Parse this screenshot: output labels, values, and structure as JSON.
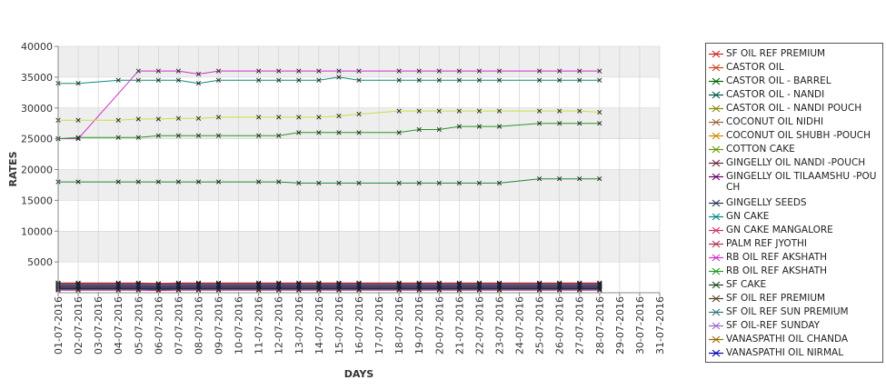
{
  "chart_data": {
    "type": "line",
    "xlabel": "DAYS",
    "ylabel": "RATES",
    "ylim": [
      0,
      40000
    ],
    "yticks": [
      "40000",
      "35000",
      "30000",
      "25000",
      "20000",
      "15000",
      "10000",
      "5000"
    ],
    "ytick_values": [
      40000,
      35000,
      30000,
      25000,
      20000,
      15000,
      10000,
      5000
    ],
    "x": [
      "01-07-2016",
      "02-07-2016",
      "03-07-2016",
      "04-07-2016",
      "05-07-2016",
      "06-07-2016",
      "07-07-2016",
      "08-07-2016",
      "09-07-2016",
      "10-07-2016",
      "11-07-2016",
      "12-07-2016",
      "13-07-2016",
      "14-07-2016",
      "15-07-2016",
      "16-07-2016",
      "17-07-2016",
      "18-07-2016",
      "19-07-2016",
      "20-07-2016",
      "21-07-2016",
      "22-07-2016",
      "23-07-2016",
      "24-07-2016",
      "25-07-2016",
      "26-07-2016",
      "27-07-2016",
      "28-07-2016",
      "29-07-2016",
      "30-07-2016",
      "31-07-2016"
    ],
    "grid": true,
    "legend_position": "right",
    "series": [
      {
        "name": " SF OIL REF PREMIUM",
        "color": "#cc2222",
        "values": [
          1600,
          1600,
          null,
          1600,
          1600,
          1500,
          1600,
          1600,
          1600,
          null,
          1600,
          1600,
          1600,
          1600,
          1600,
          1600,
          null,
          1600,
          1600,
          1600,
          1600,
          1600,
          1600,
          null,
          1600,
          1600,
          1600,
          1600,
          null,
          null,
          null
        ]
      },
      {
        "name": "CASTOR OIL",
        "color": "#cc4422",
        "values": [
          1450,
          1450,
          null,
          1450,
          1450,
          1400,
          1450,
          1450,
          1450,
          null,
          1450,
          1450,
          1450,
          1450,
          1450,
          1450,
          null,
          1450,
          1450,
          1450,
          1450,
          1450,
          1450,
          null,
          1450,
          1450,
          1450,
          1450,
          null,
          null,
          null
        ]
      },
      {
        "name": "CASTOR OIL - BARREL",
        "color": "#006600",
        "values": [
          34000,
          34000,
          null,
          34500,
          34500,
          34500,
          34500,
          34000,
          34500,
          null,
          34500,
          34500,
          34500,
          34500,
          35000,
          34500,
          null,
          34500,
          34500,
          34500,
          34500,
          34500,
          34500,
          null,
          34500,
          34500,
          34500,
          34500,
          null,
          null,
          null
        ]
      },
      {
        "name": "CASTOR OIL - NANDI",
        "color": "#005544",
        "values": [
          1300,
          1300,
          null,
          1300,
          1300,
          1250,
          1300,
          1300,
          1300,
          null,
          1300,
          1300,
          1300,
          1300,
          1300,
          1300,
          null,
          1300,
          1300,
          1300,
          1300,
          1300,
          1300,
          null,
          1300,
          1300,
          1300,
          1300,
          null,
          null,
          null
        ]
      },
      {
        "name": "CASTOR OIL - NANDI POUCH",
        "color": "#888800",
        "values": [
          1200,
          1200,
          null,
          1200,
          1200,
          1150,
          1200,
          1200,
          1200,
          null,
          1200,
          1200,
          1200,
          1200,
          1200,
          1200,
          null,
          1200,
          1200,
          1200,
          1200,
          1200,
          1200,
          null,
          1200,
          1200,
          1200,
          1200,
          null,
          null,
          null
        ]
      },
      {
        "name": "COCONUT OIL NIDHI",
        "color": "#996633",
        "values": [
          1100,
          1100,
          null,
          1100,
          1100,
          1050,
          1100,
          1100,
          1100,
          null,
          1100,
          1100,
          1100,
          1100,
          1100,
          1100,
          null,
          1100,
          1100,
          1100,
          1100,
          1100,
          1100,
          null,
          1100,
          1100,
          1100,
          1100,
          null,
          null,
          null
        ]
      },
      {
        "name": "COCONUT OIL SHUBH -POUCH",
        "color": "#cc8800",
        "values": [
          1000,
          1000,
          null,
          1000,
          1000,
          950,
          1000,
          1000,
          1000,
          null,
          1000,
          1000,
          1000,
          1000,
          1000,
          1000,
          null,
          1000,
          1000,
          1000,
          1000,
          1000,
          1000,
          null,
          1000,
          1000,
          1000,
          1000,
          null,
          null,
          null
        ]
      },
      {
        "name": "COTTON CAKE",
        "color": "#669900",
        "values": [
          900,
          900,
          null,
          900,
          900,
          850,
          900,
          900,
          900,
          null,
          900,
          900,
          900,
          900,
          900,
          900,
          null,
          900,
          900,
          900,
          900,
          900,
          900,
          null,
          900,
          900,
          900,
          900,
          null,
          null,
          null
        ]
      },
      {
        "name": "GINGELLY OIL NANDI -POUCH",
        "color": "#662244",
        "values": [
          800,
          800,
          null,
          800,
          800,
          750,
          800,
          800,
          800,
          null,
          800,
          800,
          800,
          800,
          800,
          800,
          null,
          800,
          800,
          800,
          800,
          800,
          800,
          null,
          800,
          800,
          800,
          800,
          null,
          null,
          null
        ]
      },
      {
        "name": "GINGELLY OIL TILAAMSHU -POUCH",
        "color": "#660066",
        "values": [
          700,
          700,
          null,
          700,
          700,
          650,
          700,
          700,
          700,
          null,
          700,
          700,
          700,
          700,
          700,
          700,
          null,
          700,
          700,
          700,
          700,
          700,
          700,
          null,
          700,
          700,
          700,
          700,
          null,
          null,
          null
        ]
      },
      {
        "name": "GINGELLY SEEDS",
        "color": "#223355",
        "values": [
          600,
          600,
          null,
          600,
          600,
          550,
          600,
          600,
          600,
          null,
          600,
          600,
          600,
          600,
          600,
          600,
          null,
          600,
          600,
          600,
          600,
          600,
          600,
          null,
          600,
          600,
          600,
          600,
          null,
          null,
          null
        ]
      },
      {
        "name": "GN CAKE",
        "color": "#008888",
        "values": [
          500,
          500,
          null,
          500,
          500,
          450,
          500,
          500,
          500,
          null,
          500,
          500,
          500,
          500,
          500,
          500,
          null,
          500,
          500,
          500,
          500,
          500,
          500,
          null,
          500,
          500,
          500,
          500,
          null,
          null,
          null
        ]
      },
      {
        "name": "GN CAKE MANGALORE",
        "color": "#cc3366",
        "values": [
          400,
          400,
          null,
          400,
          400,
          350,
          400,
          400,
          400,
          null,
          400,
          400,
          400,
          400,
          400,
          400,
          null,
          400,
          400,
          400,
          400,
          400,
          400,
          null,
          400,
          400,
          400,
          400,
          null,
          null,
          null
        ]
      },
      {
        "name": "PALM REF JYOTHI",
        "color": "#aa3355",
        "values": [
          1550,
          1550,
          null,
          1550,
          1550,
          1500,
          1550,
          1550,
          1550,
          null,
          1550,
          1550,
          1550,
          1550,
          1550,
          1550,
          null,
          1550,
          1550,
          1550,
          1550,
          1550,
          1550,
          null,
          1550,
          1550,
          1550,
          1550,
          null,
          null,
          null
        ]
      },
      {
        "name": "RB OIL REF  AKSHATH",
        "color": "#cc33cc",
        "values": [
          25000,
          25000,
          null,
          null,
          36000,
          36000,
          36000,
          35500,
          36000,
          null,
          36000,
          36000,
          36000,
          36000,
          36000,
          36000,
          null,
          36000,
          36000,
          36000,
          36000,
          36000,
          36000,
          null,
          36000,
          36000,
          36000,
          36000,
          null,
          null,
          null
        ]
      },
      {
        "name": "RB OIL REF AKSHATH",
        "color": "#229922",
        "values": [
          25000,
          25200,
          null,
          25200,
          25200,
          25500,
          25500,
          25500,
          25500,
          null,
          25500,
          25500,
          26000,
          26000,
          26000,
          26000,
          null,
          26000,
          26500,
          26500,
          27000,
          27000,
          27000,
          null,
          27500,
          27500,
          27500,
          27500,
          null,
          null,
          null
        ]
      },
      {
        "name": "SF CAKE",
        "color": "#224422",
        "values": [
          18000,
          18000,
          null,
          18000,
          18000,
          18000,
          18000,
          18000,
          18000,
          null,
          18000,
          18000,
          17800,
          17800,
          17800,
          17800,
          null,
          17800,
          17800,
          17800,
          17800,
          17800,
          17800,
          null,
          18500,
          18500,
          18500,
          18500,
          null,
          null,
          null
        ]
      },
      {
        "name": "SF OIL REF PREMIUM",
        "color": "#554422",
        "values": [
          1350,
          1350,
          null,
          1350,
          1350,
          1300,
          1350,
          1350,
          1350,
          null,
          1350,
          1350,
          1350,
          1350,
          1350,
          1350,
          null,
          1350,
          1350,
          1350,
          1350,
          1350,
          1350,
          null,
          1350,
          1350,
          1350,
          1350,
          null,
          null,
          null
        ]
      },
      {
        "name": "SF OIL REF SUN PREMIUM",
        "color": "#337777",
        "values": [
          1250,
          1250,
          null,
          1250,
          1250,
          1200,
          1250,
          1250,
          1250,
          null,
          1250,
          1250,
          1250,
          1250,
          1250,
          1250,
          null,
          1250,
          1250,
          1250,
          1250,
          1250,
          1250,
          null,
          1250,
          1250,
          1250,
          1250,
          null,
          null,
          null
        ]
      },
      {
        "name": "SF OIL-REF SUNDAY",
        "color": "#9966cc",
        "values": [
          1150,
          1150,
          null,
          1150,
          1150,
          1100,
          1150,
          1150,
          1150,
          null,
          1150,
          1150,
          1150,
          1150,
          1150,
          1150,
          null,
          1150,
          1150,
          1150,
          1150,
          1150,
          1150,
          null,
          1150,
          1150,
          1150,
          1150,
          null,
          null,
          null
        ]
      },
      {
        "name": "VANASPATHI OIL CHANDA",
        "color": "#996600",
        "values": [
          28000,
          28000,
          null,
          28000,
          28200,
          28200,
          28300,
          28300,
          28500,
          null,
          28500,
          28500,
          28500,
          28500,
          28700,
          29000,
          null,
          29500,
          29500,
          29500,
          29500,
          29500,
          29500,
          null,
          29500,
          29500,
          29500,
          29300,
          null,
          null,
          null
        ]
      },
      {
        "name": "VANASPATHI OIL NIRMAL",
        "color": "#0000aa",
        "values": [
          1050,
          1050,
          null,
          1050,
          1050,
          1000,
          1050,
          1050,
          1050,
          null,
          1050,
          1050,
          1050,
          1050,
          1050,
          1050,
          null,
          1050,
          1050,
          1050,
          1050,
          1050,
          1050,
          null,
          1050,
          1050,
          1050,
          1050,
          null,
          null,
          null
        ]
      }
    ],
    "line_colors": {
      "VANASPATHI OIL CHANDA": "#ccdd44",
      "CASTOR OIL - BARREL": "#118877",
      "SF CAKE": "#228833"
    },
    "background_band_color": "#eeeeee",
    "gridline_color": "#cccccc"
  }
}
